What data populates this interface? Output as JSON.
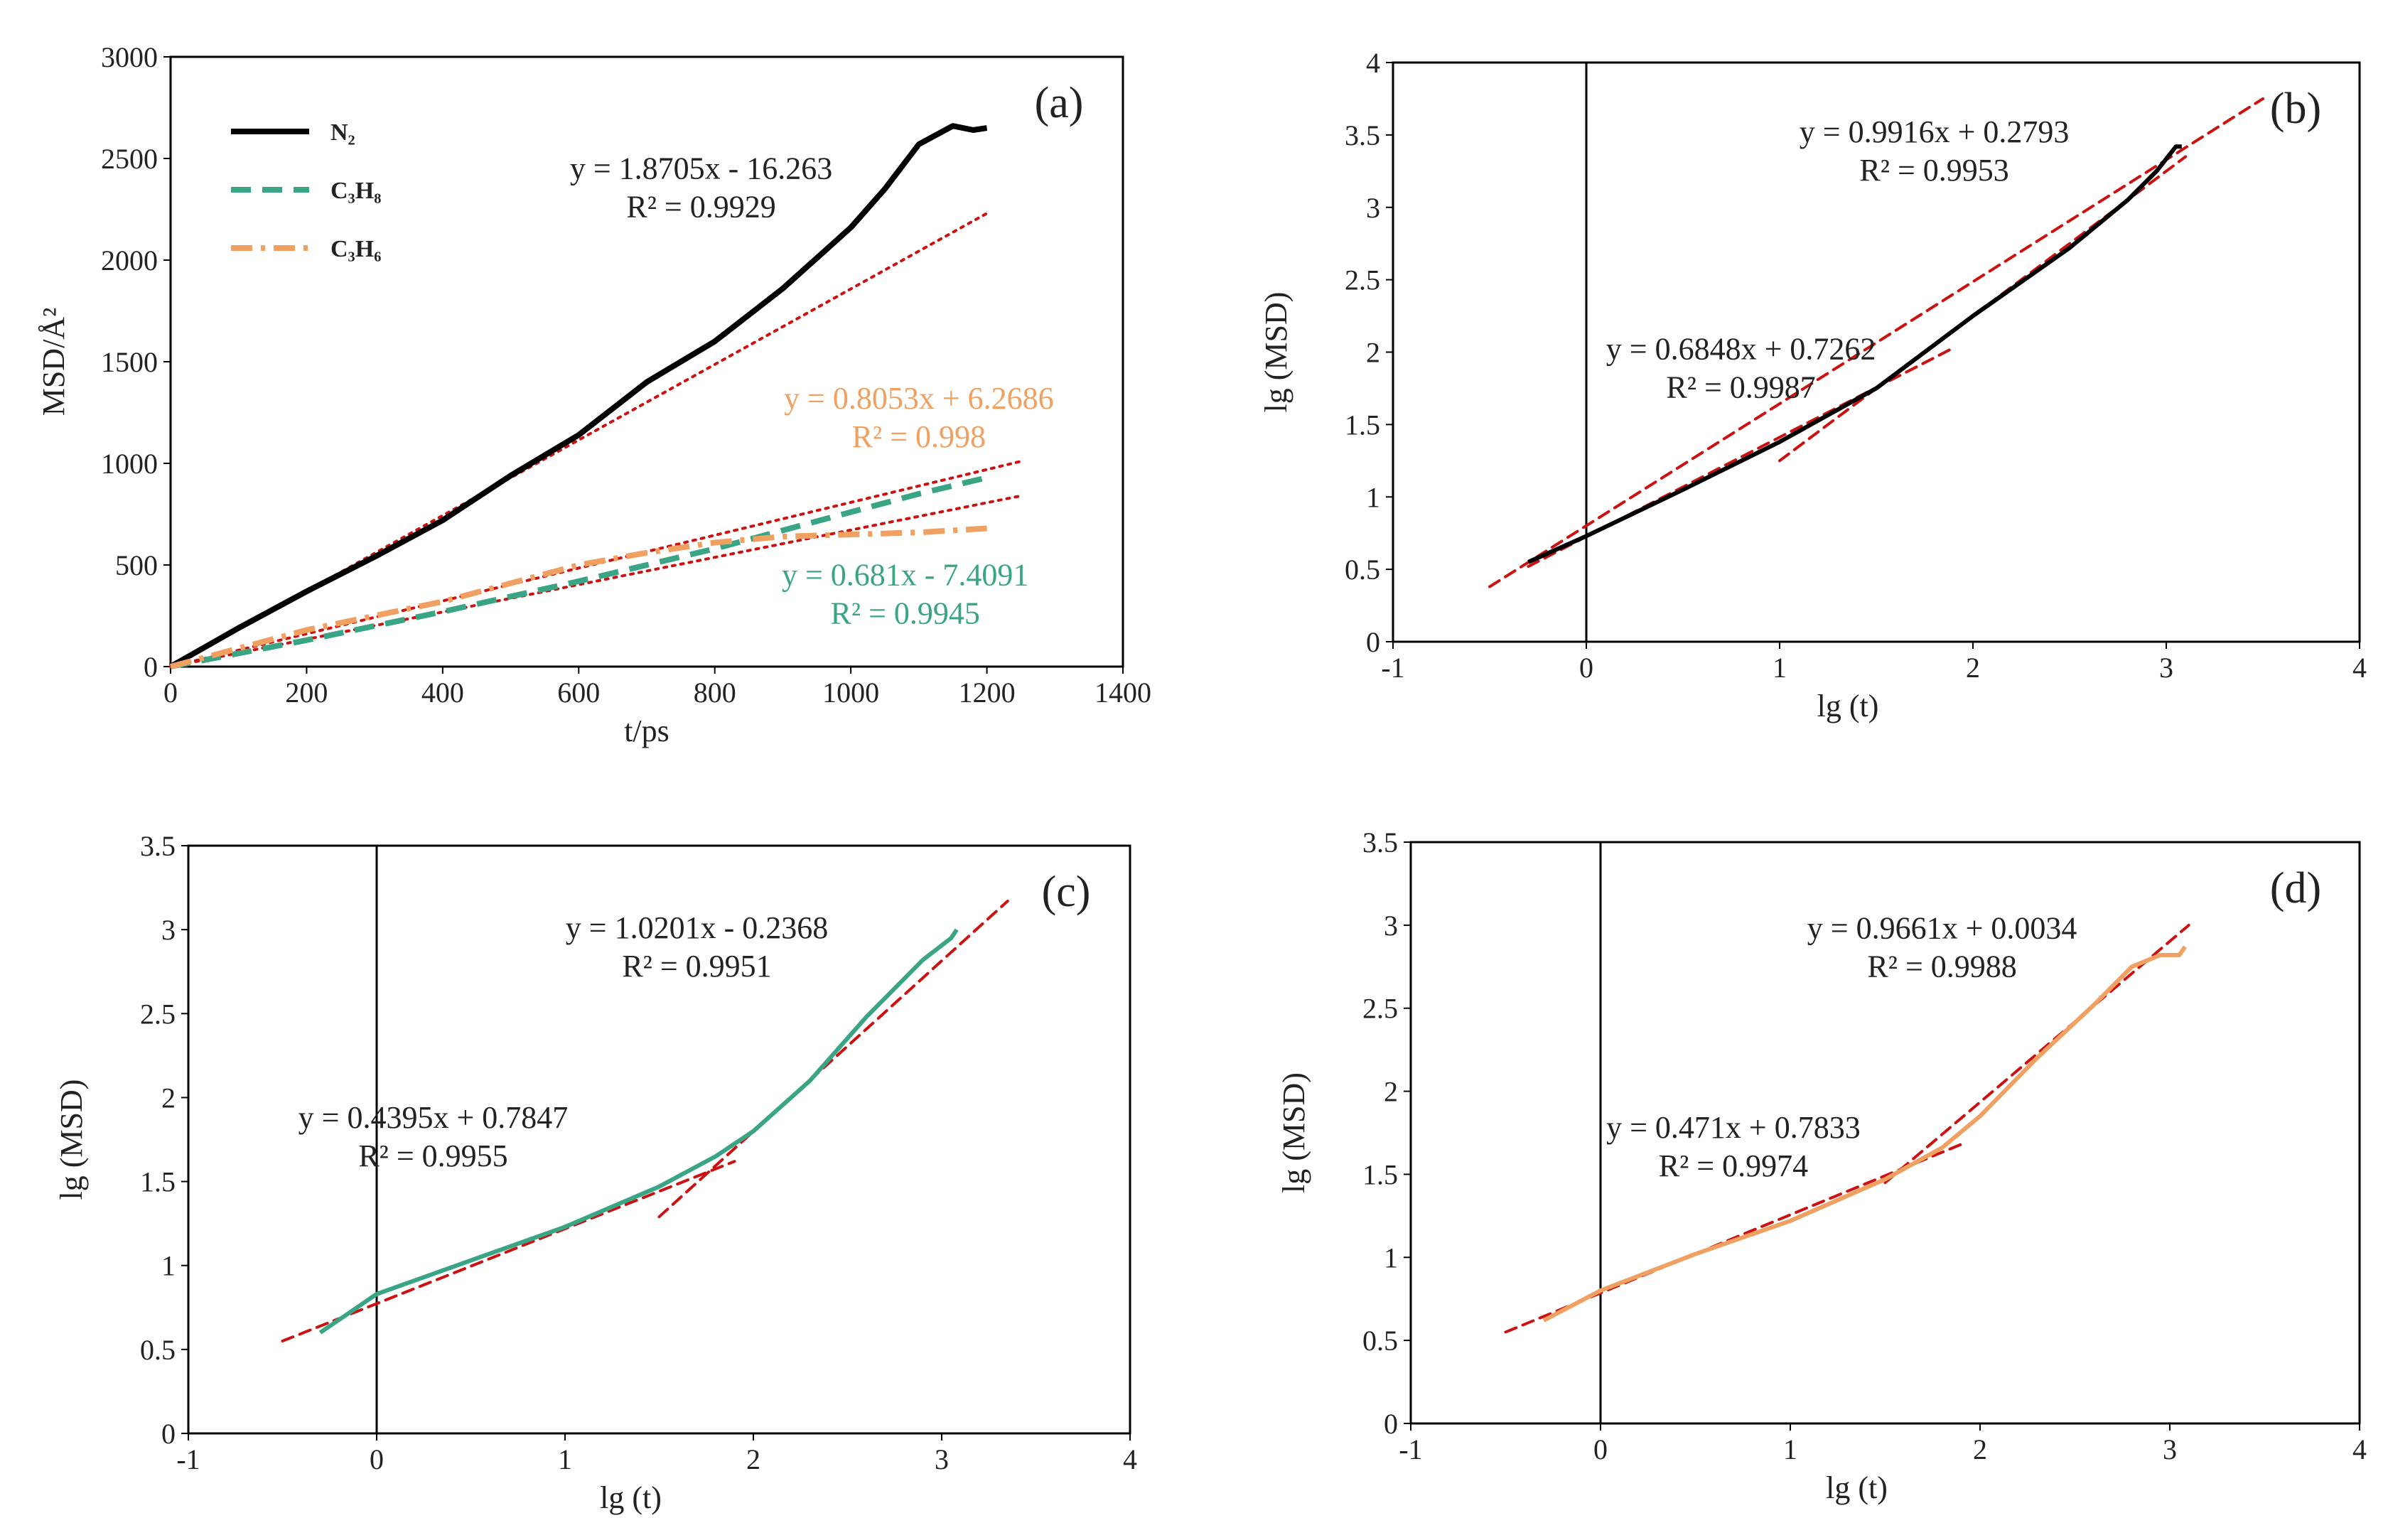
{
  "chart_data": [
    {
      "type": "line",
      "panel_label": "(a)",
      "xlabel": "t/ps",
      "ylabel": "MSD/Å²",
      "xlim": [
        0,
        1400
      ],
      "ylim": [
        0,
        3000
      ],
      "xticks": [
        0,
        200,
        400,
        600,
        800,
        1000,
        1200,
        1400
      ],
      "yticks": [
        0,
        500,
        1000,
        1500,
        2000,
        2500,
        3000
      ],
      "xtick_labels": [
        "0",
        "200",
        "400",
        "600",
        "800",
        "1000",
        "1200",
        "1400"
      ],
      "ytick_labels": [
        "0",
        "500",
        "1000",
        "1500",
        "2000",
        "2500",
        "3000"
      ],
      "legend": [
        {
          "label": "N₂",
          "color": "#000000",
          "style": "solid"
        },
        {
          "label": "C₃H₈",
          "color": "#3aa585",
          "style": "dashed"
        },
        {
          "label": "C₃H₆",
          "color": "#f0a060",
          "style": "dashdot"
        }
      ],
      "series": [
        {
          "name": "N₂",
          "color": "#000000",
          "style": "solid",
          "x": [
            0,
            100,
            200,
            300,
            400,
            500,
            600,
            700,
            800,
            900,
            1000,
            1050,
            1100,
            1150,
            1180,
            1200
          ],
          "y": [
            0,
            190,
            370,
            540,
            720,
            940,
            1140,
            1400,
            1600,
            1860,
            2160,
            2350,
            2570,
            2660,
            2640,
            2650
          ]
        },
        {
          "name": "C₃H₈",
          "color": "#3aa585",
          "style": "dashed",
          "x": [
            0,
            200,
            400,
            600,
            800,
            1000,
            1100,
            1200
          ],
          "y": [
            0,
            130,
            270,
            420,
            580,
            760,
            850,
            930
          ]
        },
        {
          "name": "C₃H₆",
          "color": "#f0a060",
          "style": "dashdot",
          "x": [
            0,
            100,
            200,
            300,
            400,
            500,
            600,
            700,
            800,
            900,
            1000,
            1100,
            1200
          ],
          "y": [
            0,
            90,
            180,
            250,
            320,
            410,
            500,
            560,
            610,
            640,
            650,
            660,
            680
          ]
        }
      ],
      "fits": [
        {
          "color": "#cc1111",
          "x": [
            0,
            1200
          ],
          "y": [
            0,
            2230
          ]
        },
        {
          "color": "#cc1111",
          "x": [
            0,
            1250
          ],
          "y": [
            0,
            1010
          ]
        },
        {
          "color": "#cc1111",
          "x": [
            0,
            1250
          ],
          "y": [
            0,
            840
          ]
        }
      ],
      "annotations": [
        {
          "lines": [
            "y = 1.8705x - 16.263",
            "R² = 0.9929"
          ],
          "color": "#222222",
          "x": 780,
          "y": 2400
        },
        {
          "lines": [
            "y = 0.8053x + 6.2686",
            "R² = 0.998"
          ],
          "color": "#f0a060",
          "x": 1100,
          "y": 1270
        },
        {
          "lines": [
            "y = 0.681x - 7.4091",
            "R² = 0.9945"
          ],
          "color": "#3aa585",
          "x": 1080,
          "y": 400
        }
      ]
    },
    {
      "type": "line",
      "panel_label": "(b)",
      "xlabel": "lg (t)",
      "ylabel": "lg (MSD)",
      "xlim": [
        -1,
        4
      ],
      "ylim": [
        0,
        4
      ],
      "xticks": [
        -1,
        0,
        1,
        2,
        3,
        4
      ],
      "yticks": [
        0,
        0.5,
        1,
        1.5,
        2,
        2.5,
        3,
        3.5,
        4
      ],
      "xtick_labels": [
        "-1",
        "0",
        "1",
        "2",
        "3",
        "4"
      ],
      "ytick_labels": [
        "0",
        "0.5",
        "1",
        "1.5",
        "2",
        "2.5",
        "3",
        "3.5",
        "4"
      ],
      "series": [
        {
          "name": "N₂",
          "color": "#000000",
          "style": "solid",
          "x": [
            -0.3,
            0,
            0.5,
            1,
            1.5,
            2,
            2.5,
            2.8,
            2.95,
            3.05,
            3.08
          ],
          "y": [
            0.55,
            0.73,
            1.05,
            1.38,
            1.75,
            2.25,
            2.72,
            3.05,
            3.25,
            3.42,
            3.42
          ]
        }
      ],
      "fits": [
        {
          "color": "#cc1111",
          "x": [
            -0.5,
            3.5
          ],
          "y": [
            0.38,
            3.75
          ]
        },
        {
          "color": "#cc1111",
          "x": [
            -0.3,
            1.9
          ],
          "y": [
            0.52,
            2.03
          ]
        },
        {
          "color": "#cc1111",
          "x": [
            1.0,
            3.1
          ],
          "y": [
            1.25,
            3.35
          ]
        }
      ],
      "annotations": [
        {
          "lines": [
            "y = 0.9916x + 0.2793",
            "R² = 0.9953"
          ],
          "color": "#222222",
          "x": 1.8,
          "y": 3.45
        },
        {
          "lines": [
            "y = 0.6848x + 0.7262",
            "R² = 0.9987"
          ],
          "color": "#222222",
          "x": 0.8,
          "y": 1.95
        }
      ]
    },
    {
      "type": "line",
      "panel_label": "(c)",
      "xlabel": "lg (t)",
      "ylabel": "lg (MSD)",
      "xlim": [
        -1,
        4
      ],
      "ylim": [
        0,
        3.5
      ],
      "xticks": [
        -1,
        0,
        1,
        2,
        3,
        4
      ],
      "yticks": [
        0,
        0.5,
        1,
        1.5,
        2,
        2.5,
        3,
        3.5
      ],
      "xtick_labels": [
        "-1",
        "0",
        "1",
        "2",
        "3",
        "4"
      ],
      "ytick_labels": [
        "0",
        "0.5",
        "1",
        "1.5",
        "2",
        "2.5",
        "3",
        "3.5"
      ],
      "series": [
        {
          "name": "C₃H₈",
          "color": "#3aa585",
          "style": "solid",
          "x": [
            -0.3,
            0,
            0.5,
            1,
            1.5,
            1.8,
            2.0,
            2.3,
            2.6,
            2.9,
            3.05,
            3.08
          ],
          "y": [
            0.6,
            0.83,
            1.03,
            1.23,
            1.47,
            1.65,
            1.8,
            2.1,
            2.48,
            2.82,
            2.95,
            3.0
          ]
        }
      ],
      "fits": [
        {
          "color": "#cc1111",
          "x": [
            -0.5,
            1.9
          ],
          "y": [
            0.55,
            1.62
          ]
        },
        {
          "color": "#cc1111",
          "x": [
            1.5,
            3.35
          ],
          "y": [
            1.29,
            3.17
          ]
        }
      ],
      "annotations": [
        {
          "lines": [
            "y = 1.0201x - 0.2368",
            "R² = 0.9951"
          ],
          "color": "#222222",
          "x": 1.7,
          "y": 2.95
        },
        {
          "lines": [
            "y = 0.4395x + 0.7847",
            "R² = 0.9955"
          ],
          "color": "#222222",
          "x": 0.3,
          "y": 1.82
        }
      ]
    },
    {
      "type": "line",
      "panel_label": "(d)",
      "xlabel": "lg (t)",
      "ylabel": "lg (MSD)",
      "xlim": [
        -1,
        4
      ],
      "ylim": [
        0,
        3.5
      ],
      "xticks": [
        -1,
        0,
        1,
        2,
        3,
        4
      ],
      "yticks": [
        0,
        0.5,
        1,
        1.5,
        2,
        2.5,
        3,
        3.5
      ],
      "xtick_labels": [
        "-1",
        "0",
        "1",
        "2",
        "3",
        "4"
      ],
      "ytick_labels": [
        "0",
        "0.5",
        "1",
        "1.5",
        "2",
        "2.5",
        "3",
        "3.5"
      ],
      "series": [
        {
          "name": "C₃H₆",
          "color": "#f0a060",
          "style": "solid",
          "x": [
            -0.3,
            0,
            0.5,
            1,
            1.5,
            1.8,
            2.0,
            2.3,
            2.6,
            2.8,
            2.95,
            3.05,
            3.08
          ],
          "y": [
            0.62,
            0.8,
            1.02,
            1.22,
            1.47,
            1.66,
            1.85,
            2.2,
            2.52,
            2.75,
            2.82,
            2.82,
            2.87
          ]
        }
      ],
      "fits": [
        {
          "color": "#cc1111",
          "x": [
            -0.5,
            1.9
          ],
          "y": [
            0.55,
            1.68
          ]
        },
        {
          "color": "#cc1111",
          "x": [
            1.5,
            3.1
          ],
          "y": [
            1.45,
            3.0
          ]
        }
      ],
      "annotations": [
        {
          "lines": [
            "y = 0.9661x + 0.0034",
            "R² = 0.9988"
          ],
          "color": "#222222",
          "x": 1.8,
          "y": 2.92
        },
        {
          "lines": [
            "y = 0.471x + 0.7833",
            "R² = 0.9974"
          ],
          "color": "#222222",
          "x": 0.7,
          "y": 1.72
        }
      ]
    }
  ]
}
